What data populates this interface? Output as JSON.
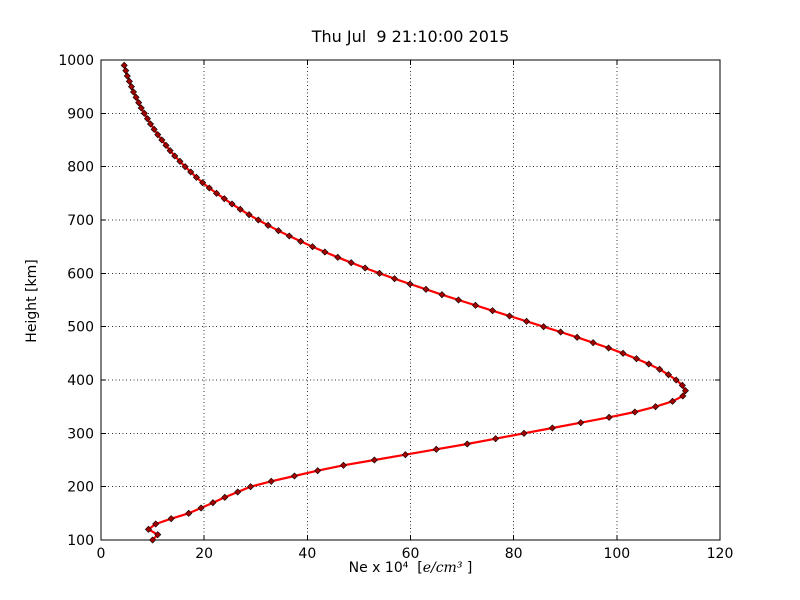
{
  "figure": {
    "title": "Thu Jul  9 21:10:00 2015"
  },
  "chart_data": {
    "type": "line",
    "title": "Thu Jul  9 21:10:00 2015",
    "xlabel": "Ne x 10⁴  [e/cm³ ]",
    "xlabel_prefix": "Ne x 10⁴  [",
    "xlabel_math": "e/cm³",
    "xlabel_suffix": " ]",
    "ylabel": "Height [km]",
    "xlim": [
      0,
      120
    ],
    "ylim": [
      100,
      1000
    ],
    "x_ticks": [
      0,
      20,
      40,
      60,
      80,
      100,
      120
    ],
    "y_ticks": [
      100,
      200,
      300,
      400,
      500,
      600,
      700,
      800,
      900,
      1000
    ],
    "grid": "dotted",
    "legend": "none",
    "line_color": "#ff0000",
    "marker_color": "#a40000",
    "marker_edge_color": "#000000",
    "marker_shape": "diamond",
    "axes_note": "x = electron density Ne x 10^4 e/cm^3, y = height km; peak ~113 at ~375-380 km",
    "series": [
      {
        "name": "electron-density-profile",
        "height_km": [
          100,
          110,
          120,
          130,
          140,
          150,
          160,
          170,
          180,
          190,
          200,
          210,
          220,
          230,
          240,
          250,
          260,
          270,
          280,
          290,
          300,
          310,
          320,
          330,
          340,
          350,
          360,
          370,
          380,
          390,
          400,
          410,
          420,
          430,
          440,
          450,
          460,
          470,
          480,
          490,
          500,
          510,
          520,
          530,
          540,
          550,
          560,
          570,
          580,
          590,
          600,
          610,
          620,
          630,
          640,
          650,
          660,
          670,
          680,
          690,
          700,
          710,
          720,
          730,
          740,
          750,
          760,
          770,
          780,
          790,
          800,
          810,
          820,
          830,
          840,
          850,
          860,
          870,
          880,
          890,
          900,
          910,
          920,
          930,
          940,
          950,
          960,
          970,
          980,
          990
        ],
        "ne_e4": [
          10.0,
          11.0,
          9.2,
          10.6,
          13.6,
          17.0,
          19.4,
          21.7,
          24.0,
          26.5,
          29.0,
          33.0,
          37.5,
          42.0,
          47.0,
          53.0,
          59.0,
          65.0,
          71.0,
          76.5,
          82.0,
          87.5,
          93.0,
          98.5,
          103.5,
          107.5,
          110.8,
          112.8,
          113.3,
          112.7,
          111.5,
          110.0,
          108.3,
          106.2,
          103.8,
          101.2,
          98.4,
          95.4,
          92.3,
          89.1,
          85.8,
          82.5,
          79.2,
          75.9,
          72.6,
          69.3,
          66.1,
          63.0,
          59.9,
          56.9,
          54.0,
          51.2,
          48.5,
          45.9,
          43.4,
          41.0,
          38.7,
          36.5,
          34.4,
          32.4,
          30.5,
          28.7,
          27.0,
          25.4,
          23.9,
          22.4,
          21.0,
          19.7,
          18.5,
          17.4,
          16.3,
          15.3,
          14.3,
          13.4,
          12.6,
          11.8,
          11.0,
          10.3,
          9.6,
          9.0,
          8.4,
          7.8,
          7.3,
          6.8,
          6.3,
          5.9,
          5.5,
          5.1,
          4.8,
          4.5
        ]
      }
    ]
  }
}
